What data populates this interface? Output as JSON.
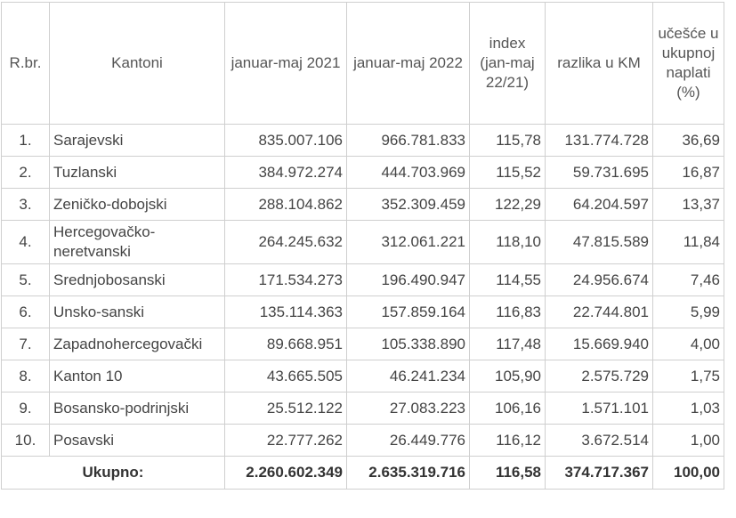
{
  "table": {
    "header": [
      "R.br.",
      "Kantoni",
      "januar-maj 2021",
      "januar-maj 2022",
      "index (jan-maj 22/21)",
      "razlika u KM",
      "učešće u ukupnoj naplati (%)"
    ],
    "rows": [
      [
        "1.",
        "Sarajevski",
        "835.007.106",
        "966.781.833",
        "115,78",
        "131.774.728",
        "36,69"
      ],
      [
        "2.",
        "Tuzlanski",
        "384.972.274",
        "444.703.969",
        "115,52",
        "59.731.695",
        "16,87"
      ],
      [
        "3.",
        "Zeničko-dobojski",
        "288.104.862",
        "352.309.459",
        "122,29",
        "64.204.597",
        "13,37"
      ],
      [
        "4.",
        "Hercegovačko-neretvanski",
        "264.245.632",
        "312.061.221",
        "118,10",
        "47.815.589",
        "11,84"
      ],
      [
        "5.",
        "Srednjobosanski",
        "171.534.273",
        "196.490.947",
        "114,55",
        "24.956.674",
        "7,46"
      ],
      [
        "6.",
        "Unsko-sanski",
        "135.114.363",
        "157.859.164",
        "116,83",
        "22.744.801",
        "5,99"
      ],
      [
        "7.",
        "Zapadnohercegovački",
        "89.668.951",
        "105.338.890",
        "117,48",
        "15.669.940",
        "4,00"
      ],
      [
        "8.",
        "Kanton 10",
        "43.665.505",
        "46.241.234",
        "105,90",
        "2.575.729",
        "1,75"
      ],
      [
        "9.",
        "Bosansko-podrinjski",
        "25.512.122",
        "27.083.223",
        "106,16",
        "1.571.101",
        "1,03"
      ],
      [
        "10.",
        "Posavski",
        "22.777.262",
        "26.449.776",
        "116,12",
        "3.672.514",
        "1,00"
      ]
    ],
    "total": {
      "label": "Ukupno:",
      "values": [
        "2.260.602.349",
        "2.635.319.716",
        "116,58",
        "374.717.367",
        "100,00"
      ]
    }
  }
}
